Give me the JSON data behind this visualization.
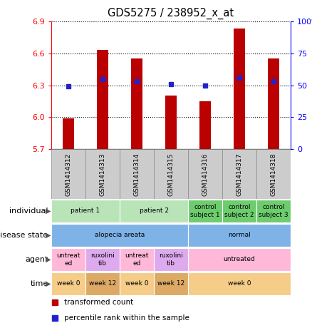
{
  "title": "GDS5275 / 238952_x_at",
  "samples": [
    "GSM1414312",
    "GSM1414313",
    "GSM1414314",
    "GSM1414315",
    "GSM1414316",
    "GSM1414317",
    "GSM1414318"
  ],
  "transformed_counts": [
    5.99,
    6.63,
    6.55,
    6.2,
    6.15,
    6.83,
    6.55
  ],
  "percentile_ranks": [
    49,
    55,
    53,
    51,
    50,
    56,
    53
  ],
  "y_min": 5.7,
  "y_max": 6.9,
  "y_ticks_red": [
    5.7,
    6.0,
    6.3,
    6.6,
    6.9
  ],
  "y_ticks_blue_vals": [
    0,
    25,
    50,
    75,
    100
  ],
  "y_ticks_blue_labels": [
    "0",
    "25",
    "50",
    "75",
    "100%"
  ],
  "bar_color": "#bb0000",
  "dot_color": "#2222cc",
  "bar_bottom": 5.7,
  "annotation_rows": [
    {
      "label": "individual",
      "cells": [
        {
          "text": "patient 1",
          "span": [
            0,
            1
          ],
          "color": "#b8e4b8"
        },
        {
          "text": "patient 2",
          "span": [
            2,
            3
          ],
          "color": "#b8e4b8"
        },
        {
          "text": "control\nsubject 1",
          "span": [
            4,
            4
          ],
          "color": "#6dcc6d"
        },
        {
          "text": "control\nsubject 2",
          "span": [
            5,
            5
          ],
          "color": "#6dcc6d"
        },
        {
          "text": "control\nsubject 3",
          "span": [
            6,
            6
          ],
          "color": "#6dcc6d"
        }
      ]
    },
    {
      "label": "disease state",
      "cells": [
        {
          "text": "alopecia areata",
          "span": [
            0,
            3
          ],
          "color": "#7fb3e8"
        },
        {
          "text": "normal",
          "span": [
            4,
            6
          ],
          "color": "#7fb3e8"
        }
      ]
    },
    {
      "label": "agent",
      "cells": [
        {
          "text": "untreat\ned",
          "span": [
            0,
            0
          ],
          "color": "#ffb8d8"
        },
        {
          "text": "ruxolini\ntib",
          "span": [
            1,
            1
          ],
          "color": "#ddaaee"
        },
        {
          "text": "untreat\ned",
          "span": [
            2,
            2
          ],
          "color": "#ffb8d8"
        },
        {
          "text": "ruxolini\ntib",
          "span": [
            3,
            3
          ],
          "color": "#ddaaee"
        },
        {
          "text": "untreated",
          "span": [
            4,
            6
          ],
          "color": "#ffb8d8"
        }
      ]
    },
    {
      "label": "time",
      "cells": [
        {
          "text": "week 0",
          "span": [
            0,
            0
          ],
          "color": "#f5cc88"
        },
        {
          "text": "week 12",
          "span": [
            1,
            1
          ],
          "color": "#ddaa66"
        },
        {
          "text": "week 0",
          "span": [
            2,
            2
          ],
          "color": "#f5cc88"
        },
        {
          "text": "week 12",
          "span": [
            3,
            3
          ],
          "color": "#ddaa66"
        },
        {
          "text": "week 0",
          "span": [
            4,
            6
          ],
          "color": "#f5cc88"
        }
      ]
    }
  ],
  "legend": [
    {
      "color": "#bb0000",
      "marker": "s",
      "label": "transformed count"
    },
    {
      "color": "#2222cc",
      "marker": "s",
      "label": "percentile rank within the sample"
    }
  ],
  "fig_width": 4.38,
  "fig_height": 4.53,
  "dpi": 100
}
